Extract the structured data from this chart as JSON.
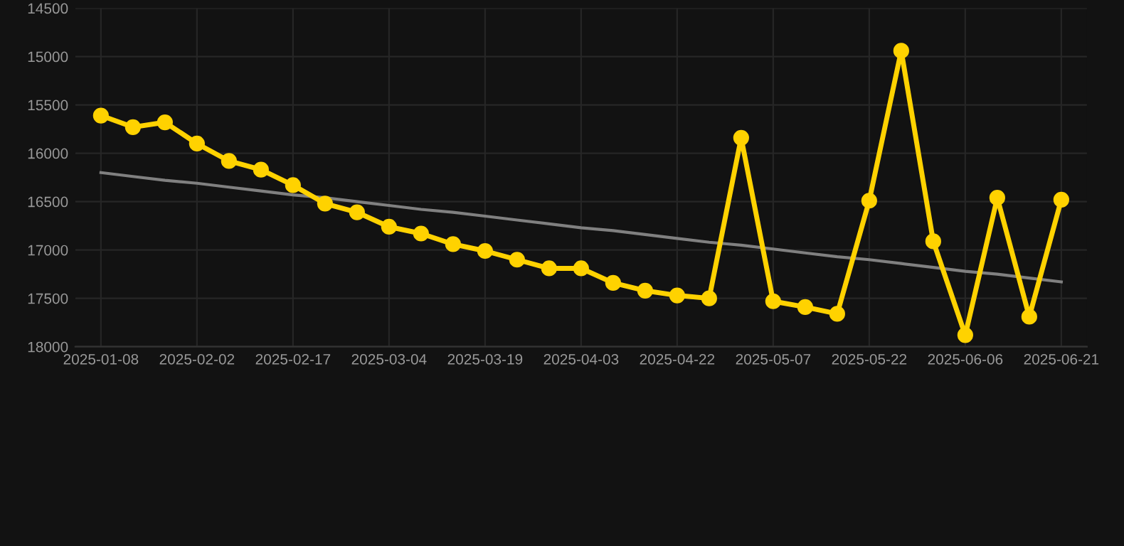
{
  "chart_data": {
    "type": "line",
    "categories": [
      "2025-01-08",
      null,
      null,
      "2025-02-02",
      null,
      null,
      "2025-02-17",
      null,
      null,
      "2025-03-04",
      null,
      null,
      "2025-03-19",
      null,
      null,
      "2025-04-03",
      null,
      null,
      "2025-04-22",
      null,
      null,
      "2025-05-07",
      null,
      null,
      "2025-05-22",
      null,
      null,
      "2025-06-06",
      null,
      null,
      "2025-06-21"
    ],
    "ylim": [
      18000,
      14500
    ],
    "yticks": [
      14500,
      15000,
      15500,
      16000,
      16500,
      17000,
      17500,
      18000
    ],
    "grid": true,
    "legend": false,
    "series": [
      {
        "color": "#ffd200",
        "marker": "circle",
        "values": [
          15610,
          15730,
          15680,
          15900,
          16080,
          16170,
          16330,
          16520,
          16610,
          16760,
          16830,
          16940,
          17010,
          17100,
          17190,
          17190,
          17340,
          17420,
          17470,
          17500,
          15840,
          17530,
          17590,
          17660,
          16490,
          14940,
          16910,
          17880,
          16460,
          17690,
          16480
        ]
      },
      {
        "type": "line",
        "color": "#808080",
        "marker": "none",
        "values": [
          16200,
          16240,
          16280,
          16310,
          16350,
          16390,
          16430,
          16460,
          16500,
          16540,
          16580,
          16610,
          16650,
          16690,
          16730,
          16770,
          16800,
          16840,
          16880,
          16920,
          16950,
          16990,
          17030,
          17070,
          17100,
          17140,
          17180,
          17220,
          17250,
          17290,
          17330
        ]
      }
    ]
  }
}
